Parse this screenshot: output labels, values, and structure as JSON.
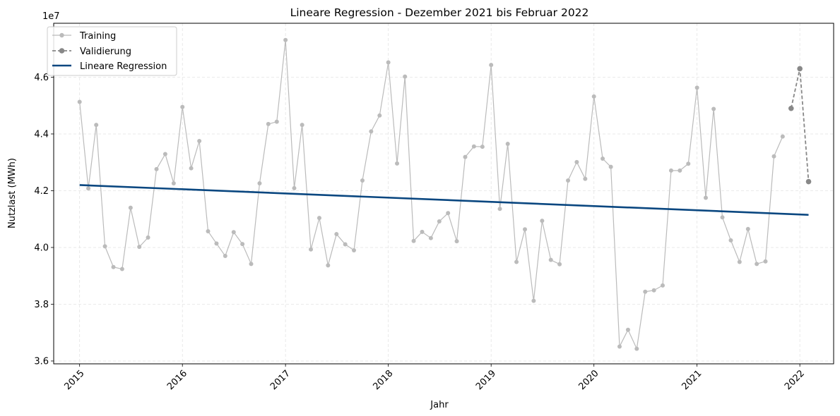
{
  "chart_data": {
    "type": "line",
    "title": "Lineare Regression  - Dezember 2021 bis Februar 2022",
    "xlabel": "Jahr",
    "ylabel": "Nutzlast (MWh)",
    "y_offset_label": "1e7",
    "x_ticks": [
      {
        "date": "2015-01-01",
        "label": "2015"
      },
      {
        "date": "2016-01-01",
        "label": "2016"
      },
      {
        "date": "2017-01-01",
        "label": "2017"
      },
      {
        "date": "2018-01-01",
        "label": "2018"
      },
      {
        "date": "2019-01-01",
        "label": "2019"
      },
      {
        "date": "2020-01-01",
        "label": "2020"
      },
      {
        "date": "2021-01-01",
        "label": "2021"
      },
      {
        "date": "2022-01-01",
        "label": "2022"
      }
    ],
    "y_ticks": [
      {
        "value": 3.6,
        "label": "3.6"
      },
      {
        "value": 3.8,
        "label": "3.8"
      },
      {
        "value": 4.0,
        "label": "4.0"
      },
      {
        "value": 4.2,
        "label": "4.2"
      },
      {
        "value": 4.4,
        "label": "4.4"
      },
      {
        "value": 4.6,
        "label": "4.6"
      }
    ],
    "ylim": [
      3.59,
      4.79
    ],
    "xlim": [
      "2014-10-01",
      "2022-05-01"
    ],
    "grid": true,
    "legend_position": "top-left",
    "series": [
      {
        "name": "Training",
        "style": "solid-thin-markers",
        "color": "#bbbbbb",
        "points": [
          [
            "2015-01",
            4.513
          ],
          [
            "2015-02",
            4.208
          ],
          [
            "2015-03",
            4.432
          ],
          [
            "2015-04",
            4.004
          ],
          [
            "2015-05",
            3.931
          ],
          [
            "2015-06",
            3.924
          ],
          [
            "2015-07",
            4.14
          ],
          [
            "2015-08",
            4.002
          ],
          [
            "2015-09",
            4.035
          ],
          [
            "2015-10",
            4.276
          ],
          [
            "2015-11",
            4.329
          ],
          [
            "2015-12",
            4.226
          ],
          [
            "2016-01",
            4.495
          ],
          [
            "2016-02",
            4.279
          ],
          [
            "2016-03",
            4.375
          ],
          [
            "2016-04",
            4.057
          ],
          [
            "2016-05",
            4.014
          ],
          [
            "2016-06",
            3.97
          ],
          [
            "2016-07",
            4.054
          ],
          [
            "2016-08",
            4.012
          ],
          [
            "2016-09",
            3.942
          ],
          [
            "2016-10",
            4.226
          ],
          [
            "2016-11",
            4.435
          ],
          [
            "2016-12",
            4.443
          ],
          [
            "2017-01",
            4.731
          ],
          [
            "2017-02",
            4.209
          ],
          [
            "2017-03",
            4.432
          ],
          [
            "2017-04",
            3.993
          ],
          [
            "2017-05",
            4.104
          ],
          [
            "2017-06",
            3.937
          ],
          [
            "2017-07",
            4.047
          ],
          [
            "2017-08",
            4.011
          ],
          [
            "2017-09",
            3.99
          ],
          [
            "2017-10",
            4.236
          ],
          [
            "2017-11",
            4.409
          ],
          [
            "2017-12",
            4.465
          ],
          [
            "2018-01",
            4.652
          ],
          [
            "2018-02",
            4.296
          ],
          [
            "2018-03",
            4.602
          ],
          [
            "2018-04",
            4.023
          ],
          [
            "2018-05",
            4.055
          ],
          [
            "2018-06",
            4.033
          ],
          [
            "2018-07",
            4.092
          ],
          [
            "2018-08",
            4.121
          ],
          [
            "2018-09",
            4.022
          ],
          [
            "2018-10",
            4.319
          ],
          [
            "2018-11",
            4.356
          ],
          [
            "2018-12",
            4.355
          ],
          [
            "2019-01",
            4.643
          ],
          [
            "2019-02",
            4.136
          ],
          [
            "2019-03",
            4.365
          ],
          [
            "2019-04",
            3.949
          ],
          [
            "2019-05",
            4.064
          ],
          [
            "2019-06",
            3.812
          ],
          [
            "2019-07",
            4.094
          ],
          [
            "2019-08",
            3.956
          ],
          [
            "2019-09",
            3.941
          ],
          [
            "2019-10",
            4.236
          ],
          [
            "2019-11",
            4.301
          ],
          [
            "2019-12",
            4.242
          ],
          [
            "2020-01",
            4.532
          ],
          [
            "2020-02",
            4.313
          ],
          [
            "2020-03",
            4.284
          ],
          [
            "2020-04",
            3.651
          ],
          [
            "2020-05",
            3.71
          ],
          [
            "2020-06",
            3.643
          ],
          [
            "2020-07",
            3.844
          ],
          [
            "2020-08",
            3.849
          ],
          [
            "2020-09",
            3.866
          ],
          [
            "2020-10",
            4.271
          ],
          [
            "2020-11",
            4.271
          ],
          [
            "2020-12",
            4.295
          ],
          [
            "2021-01",
            4.563
          ],
          [
            "2021-02",
            4.175
          ],
          [
            "2021-03",
            4.488
          ],
          [
            "2021-04",
            4.106
          ],
          [
            "2021-05",
            4.025
          ],
          [
            "2021-06",
            3.949
          ],
          [
            "2021-07",
            4.065
          ],
          [
            "2021-08",
            3.942
          ],
          [
            "2021-09",
            3.951
          ],
          [
            "2021-10",
            4.321
          ],
          [
            "2021-11",
            4.391
          ]
        ]
      },
      {
        "name": "Validierung",
        "style": "dashed-markers",
        "color": "#888888",
        "points": [
          [
            "2021-12",
            4.49
          ],
          [
            "2022-01",
            4.63
          ],
          [
            "2022-02",
            4.232
          ]
        ]
      },
      {
        "name": "Lineare Regression",
        "style": "solid-thick",
        "color": "#0a4780",
        "points": [
          [
            "2015-01",
            4.22
          ],
          [
            "2022-02",
            4.115
          ]
        ]
      }
    ]
  }
}
